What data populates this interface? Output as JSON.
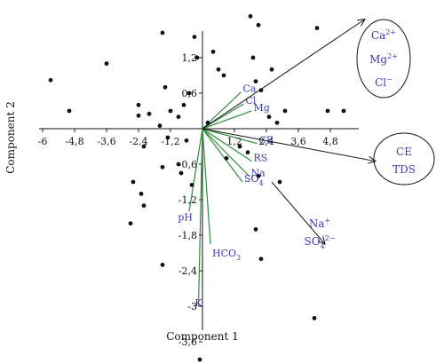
{
  "chart_data": {
    "type": "scatter",
    "xlabel": "Component 1",
    "ylabel": "Component 2",
    "xlim": [
      -6,
      6
    ],
    "ylim": [
      -4.0,
      2.5
    ],
    "xticks": [
      -6,
      -4.8,
      -3.6,
      -2.4,
      -1.2,
      1.2,
      2.4,
      3.6,
      4.8
    ],
    "xtick_labels": [
      "-6",
      "-4,8",
      "-3,6",
      "-2,4",
      "-1,2",
      "1,2",
      "2,4",
      "3,6",
      "4,8"
    ],
    "yticks": [
      1.2,
      0.6,
      -0.6,
      -1.2,
      -1.8,
      -2.4,
      -3,
      -3.6
    ],
    "ytick_labels": [
      "1,2",
      "0,6",
      "-0,6",
      "-1,2",
      "-1,8",
      "-2,4",
      "-3",
      "-3,6"
    ],
    "points": [
      {
        "x": -5.7,
        "y": 0.82
      },
      {
        "x": -5.0,
        "y": 0.3
      },
      {
        "x": -3.6,
        "y": 1.1
      },
      {
        "x": -2.4,
        "y": 0.4
      },
      {
        "x": -2.4,
        "y": 0.22
      },
      {
        "x": -2.2,
        "y": -0.3
      },
      {
        "x": -2.0,
        "y": 0.25
      },
      {
        "x": -1.6,
        "y": 0.05
      },
      {
        "x": -1.5,
        "y": 1.62
      },
      {
        "x": -1.4,
        "y": 0.7
      },
      {
        "x": -1.2,
        "y": 0.3
      },
      {
        "x": -0.9,
        "y": 0.2
      },
      {
        "x": -0.7,
        "y": 0.4
      },
      {
        "x": -0.6,
        "y": -0.2
      },
      {
        "x": -0.5,
        "y": 0.6
      },
      {
        "x": -0.3,
        "y": 1.55
      },
      {
        "x": -0.2,
        "y": 1.2
      },
      {
        "x": -1.3,
        "y": -0.15
      },
      {
        "x": -2.6,
        "y": -0.9
      },
      {
        "x": -2.3,
        "y": -1.1
      },
      {
        "x": -2.2,
        "y": -1.3
      },
      {
        "x": -2.7,
        "y": -1.6
      },
      {
        "x": -0.4,
        "y": -0.95
      },
      {
        "x": -1.5,
        "y": -2.3
      },
      {
        "x": -0.1,
        "y": -3.9
      },
      {
        "x": 0.4,
        "y": 1.3
      },
      {
        "x": 0.6,
        "y": 1.0
      },
      {
        "x": 0.8,
        "y": 0.9
      },
      {
        "x": 0.2,
        "y": 0.1
      },
      {
        "x": 1.8,
        "y": 1.9
      },
      {
        "x": 1.9,
        "y": 1.2
      },
      {
        "x": 2.1,
        "y": 1.75
      },
      {
        "x": 2.0,
        "y": 0.8
      },
      {
        "x": 2.6,
        "y": 1.0
      },
      {
        "x": 2.2,
        "y": 0.65
      },
      {
        "x": 2.5,
        "y": 0.2
      },
      {
        "x": 3.1,
        "y": 0.3
      },
      {
        "x": 4.3,
        "y": 1.7
      },
      {
        "x": 4.7,
        "y": 0.3
      },
      {
        "x": 5.3,
        "y": 0.3
      },
      {
        "x": 2.8,
        "y": 0.1
      },
      {
        "x": 2.9,
        "y": -0.9
      },
      {
        "x": 2.1,
        "y": -0.8
      },
      {
        "x": 1.7,
        "y": -0.4
      },
      {
        "x": 1.4,
        "y": -0.3
      },
      {
        "x": 0.9,
        "y": -0.5
      },
      {
        "x": 2.2,
        "y": -2.2
      },
      {
        "x": 2.0,
        "y": -1.7
      },
      {
        "x": 4.2,
        "y": -3.2
      },
      {
        "x": -1.5,
        "y": -0.65
      },
      {
        "x": -0.9,
        "y": -0.6
      },
      {
        "x": -0.8,
        "y": -0.75
      }
    ],
    "loadings": [
      {
        "label": "Ca",
        "x": 1.45,
        "y": 0.62
      },
      {
        "label": "Cl",
        "x": 1.55,
        "y": 0.42
      },
      {
        "label": "Mg",
        "x": 1.85,
        "y": 0.3
      },
      {
        "label": "CE",
        "x": 2.05,
        "y": -0.25
      },
      {
        "label": "RS",
        "x": 1.85,
        "y": -0.55
      },
      {
        "label": "Na",
        "x": 1.75,
        "y": -0.8
      },
      {
        "label": "SO4",
        "x": 1.5,
        "y": -0.9
      },
      {
        "label": "pH",
        "x": -0.5,
        "y": -1.4
      },
      {
        "label": "HCO3",
        "x": 0.3,
        "y": -1.95
      },
      {
        "label": "K",
        "x": -0.15,
        "y": -3.0
      }
    ],
    "arrows": [
      {
        "x1": 0,
        "y1": 0,
        "x2": 6.1,
        "y2": 1.85
      },
      {
        "x1": 0,
        "y1": 0,
        "x2": 6.5,
        "y2": -0.55
      },
      {
        "x1": 2.6,
        "y1": -0.9,
        "x2": 4.6,
        "y2": -1.95
      }
    ],
    "annotations": [
      {
        "lines": [
          "Ca2+",
          "Mg2+",
          "Cl−"
        ],
        "shape": "ellipse"
      },
      {
        "lines": [
          "CE",
          "TDS"
        ],
        "shape": "ellipse"
      },
      {
        "lines": [
          "Na+",
          "SO42−"
        ],
        "shape": "none"
      }
    ]
  }
}
